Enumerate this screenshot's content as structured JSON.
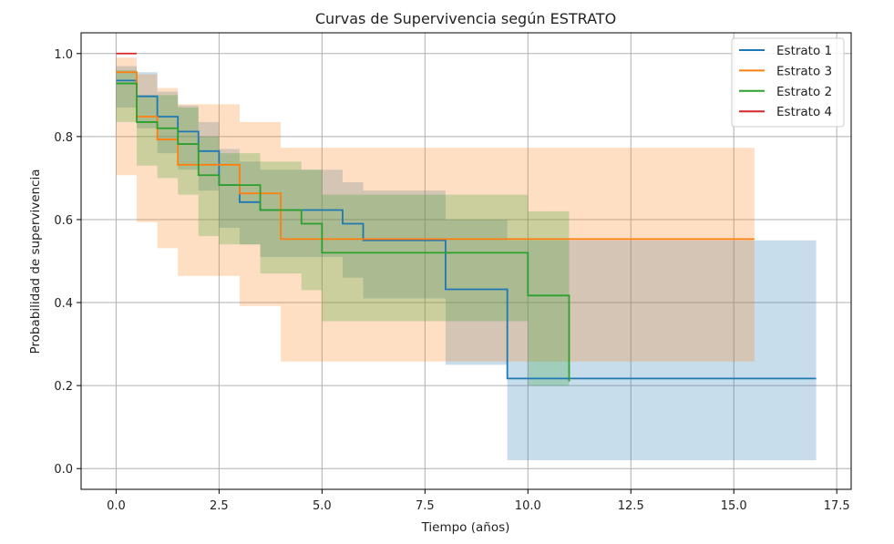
{
  "chart_data": {
    "type": "line",
    "title": "Curvas de Supervivencia según ESTRATO",
    "xlabel": "Tiempo (años)",
    "ylabel": "Probabilidad de supervivencia",
    "xlim": [
      -0.85,
      17.85
    ],
    "ylim": [
      -0.05,
      1.05
    ],
    "xticks": [
      0.0,
      2.5,
      5.0,
      7.5,
      10.0,
      12.5,
      15.0,
      17.5
    ],
    "xtick_labels": [
      "0.0",
      "2.5",
      "5.0",
      "7.5",
      "10.0",
      "12.5",
      "15.0",
      "17.5"
    ],
    "yticks": [
      0.0,
      0.2,
      0.4,
      0.6,
      0.8,
      1.0
    ],
    "ytick_labels": [
      "0.0",
      "0.2",
      "0.4",
      "0.6",
      "0.8",
      "1.0"
    ],
    "grid": true,
    "legend_position": "top-right",
    "step": "post",
    "series": [
      {
        "name": "Estrato 1",
        "color": "#1f77b4",
        "x": [
          0,
          0.5,
          1.0,
          1.5,
          2.0,
          2.5,
          3.0,
          3.5,
          4.0,
          5.5,
          6.0,
          8.0,
          9.5,
          17.0
        ],
        "y": [
          0.935,
          0.897,
          0.848,
          0.812,
          0.765,
          0.683,
          0.642,
          0.623,
          0.623,
          0.59,
          0.55,
          0.432,
          0.217,
          0.217
        ],
        "ci_upper": [
          0.97,
          0.955,
          0.908,
          0.875,
          0.835,
          0.77,
          0.74,
          0.72,
          0.72,
          0.69,
          0.67,
          0.6,
          0.55,
          0.55
        ],
        "ci_lower": [
          0.87,
          0.82,
          0.76,
          0.72,
          0.67,
          0.58,
          0.54,
          0.51,
          0.51,
          0.46,
          0.41,
          0.25,
          0.02,
          0.02
        ]
      },
      {
        "name": "Estrato 3",
        "color": "#ff7f0e",
        "x": [
          0,
          0.5,
          1.0,
          1.5,
          2.0,
          2.5,
          3.0,
          4.0,
          15.5
        ],
        "y": [
          0.955,
          0.848,
          0.793,
          0.732,
          0.732,
          0.732,
          0.663,
          0.553,
          0.553
        ],
        "ci_upper": [
          0.99,
          0.95,
          0.917,
          0.878,
          0.878,
          0.878,
          0.835,
          0.773,
          0.773
        ],
        "ci_lower": [
          0.707,
          0.594,
          0.531,
          0.464,
          0.464,
          0.464,
          0.392,
          0.258,
          0.258
        ]
      },
      {
        "name": "Estrato 2",
        "color": "#2ca02c",
        "x": [
          0,
          0.5,
          1.0,
          1.5,
          2.0,
          2.5,
          3.5,
          4.5,
          5.0,
          10.0,
          11.0
        ],
        "y": [
          0.928,
          0.835,
          0.82,
          0.782,
          0.707,
          0.683,
          0.623,
          0.59,
          0.52,
          0.417,
          0.21
        ],
        "ci_upper": [
          0.96,
          0.9,
          0.9,
          0.87,
          0.8,
          0.76,
          0.74,
          0.72,
          0.66,
          0.62,
          0.62
        ],
        "ci_lower": [
          0.835,
          0.73,
          0.7,
          0.66,
          0.56,
          0.54,
          0.47,
          0.43,
          0.355,
          0.2,
          0.02
        ]
      },
      {
        "name": "Estrato 4",
        "color": "#d62728",
        "x": [
          0,
          0.5
        ],
        "y": [
          1.0,
          1.0
        ],
        "ci_upper": [
          1.0,
          1.0
        ],
        "ci_lower": [
          1.0,
          1.0
        ]
      }
    ]
  }
}
